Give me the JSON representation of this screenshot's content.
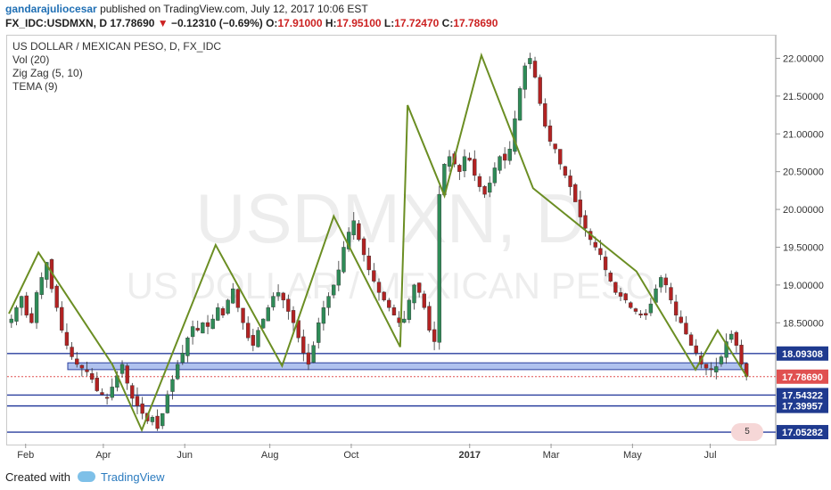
{
  "header": {
    "author": "gandarajuliocesar",
    "published_text": "published on TradingView.com, July 12, 2017 10:06 EST",
    "symbol": "FX_IDC:USDMXN, D",
    "last": "17.78690",
    "change_arrow": "▼",
    "change": "−0.12310 (−0.69%)",
    "o_label": "O:",
    "o": "17.91000",
    "h_label": "H:",
    "h": "17.95100",
    "l_label": "L:",
    "l": "17.72470",
    "c_label": "C:",
    "c": "17.78690"
  },
  "legend": {
    "title": "US DOLLAR / MEXICAN PESO, D, FX_IDC",
    "vol": "Vol (20)",
    "zigzag": "Zig Zag (5, 10)",
    "tema": "TEMA (9)"
  },
  "watermark": {
    "line1": "USDMXN, D",
    "line2": "US DOLLAR / MEXICAN PESO"
  },
  "footer": {
    "created_with": "Created with",
    "brand": "TradingView"
  },
  "badge": {
    "text": "5"
  },
  "colors": {
    "up": "#2e8b57",
    "down": "#b22222",
    "zigzag": "#6b8e23",
    "hline": "#2a3f9e",
    "zone": "#6f8fe0",
    "price_tag": "#e05050",
    "line_tag": "#1f3a8f"
  },
  "chart_data": {
    "type": "candlestick",
    "x_labels": [
      "Feb",
      "Apr",
      "Jun",
      "Aug",
      "Oct",
      "2017",
      "Mar",
      "May",
      "Jul"
    ],
    "y_ticks": [
      "22.00000",
      "21.50000",
      "21.00000",
      "20.50000",
      "20.00000",
      "19.50000",
      "19.00000",
      "18.50000"
    ],
    "ylim": [
      16.9,
      22.3
    ],
    "horizontal_levels": [
      {
        "value": 18.09308,
        "label": "18.09308"
      },
      {
        "value": 17.54322,
        "label": "17.54322"
      },
      {
        "value": 17.39957,
        "label": "17.39957"
      },
      {
        "value": 17.05282,
        "label": "17.05282"
      }
    ],
    "current_price": {
      "value": 17.7869,
      "label": "17.78690"
    },
    "support_zone": {
      "from": 17.88,
      "to": 17.97
    },
    "zigzag": [
      {
        "x": 0.0,
        "y": 18.62
      },
      {
        "x": 0.04,
        "y": 19.43
      },
      {
        "x": 0.14,
        "y": 17.95
      },
      {
        "x": 0.18,
        "y": 17.08
      },
      {
        "x": 0.28,
        "y": 19.53
      },
      {
        "x": 0.37,
        "y": 17.93
      },
      {
        "x": 0.44,
        "y": 19.91
      },
      {
        "x": 0.53,
        "y": 18.18
      },
      {
        "x": 0.54,
        "y": 21.38
      },
      {
        "x": 0.59,
        "y": 20.18
      },
      {
        "x": 0.64,
        "y": 22.04
      },
      {
        "x": 0.71,
        "y": 20.28
      },
      {
        "x": 0.85,
        "y": 19.18
      },
      {
        "x": 0.93,
        "y": 17.88
      },
      {
        "x": 0.96,
        "y": 18.4
      },
      {
        "x": 1.0,
        "y": 17.78
      }
    ],
    "ohlc_path": [
      18.55,
      18.7,
      18.85,
      18.6,
      18.5,
      18.9,
      19.1,
      19.3,
      18.95,
      18.7,
      18.4,
      18.2,
      18.05,
      17.95,
      17.9,
      17.85,
      17.75,
      17.6,
      17.55,
      17.5,
      17.65,
      17.8,
      17.95,
      17.7,
      17.5,
      17.4,
      17.3,
      17.2,
      17.25,
      17.1,
      17.3,
      17.55,
      17.75,
      17.95,
      18.1,
      18.3,
      18.45,
      18.4,
      18.5,
      18.45,
      18.55,
      18.7,
      18.6,
      18.8,
      18.95,
      18.7,
      18.5,
      18.3,
      18.2,
      18.4,
      18.55,
      18.7,
      18.85,
      18.9,
      18.8,
      18.65,
      18.5,
      18.3,
      18.1,
      17.95,
      18.2,
      18.5,
      18.7,
      18.85,
      19.0,
      19.2,
      19.5,
      19.7,
      19.85,
      19.6,
      19.4,
      19.2,
      19.05,
      18.9,
      18.8,
      18.7,
      18.6,
      18.5,
      18.55,
      18.8,
      19.0,
      18.9,
      18.7,
      18.4,
      18.25,
      20.2,
      20.6,
      20.7,
      20.6,
      20.5,
      20.7,
      20.65,
      20.45,
      20.3,
      20.2,
      20.35,
      20.55,
      20.7,
      20.65,
      20.8,
      21.2,
      21.6,
      21.9,
      22.0,
      21.75,
      21.4,
      21.1,
      20.9,
      20.8,
      20.6,
      20.45,
      20.3,
      20.1,
      19.9,
      19.75,
      19.6,
      19.5,
      19.4,
      19.2,
      19.05,
      18.9,
      18.85,
      18.8,
      18.7,
      18.65,
      18.6,
      18.6,
      18.75,
      18.95,
      19.1,
      19.0,
      18.8,
      18.6,
      18.5,
      18.35,
      18.2,
      18.1,
      17.95,
      17.9,
      17.88,
      17.92,
      18.05,
      18.25,
      18.35,
      18.2,
      17.95,
      17.79
    ]
  }
}
